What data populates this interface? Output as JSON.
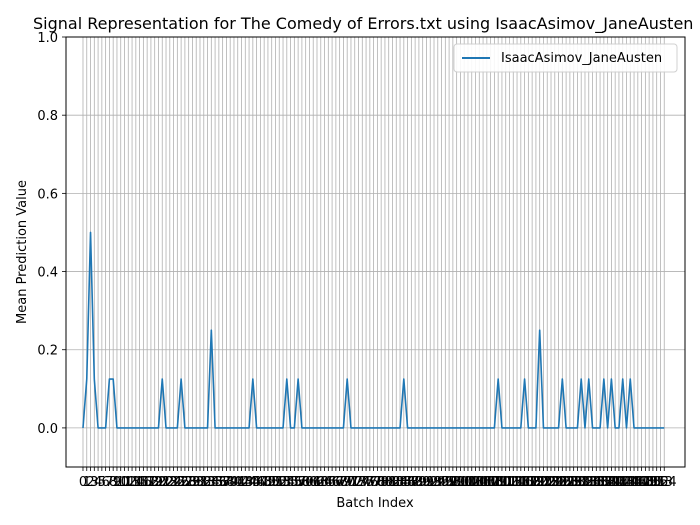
{
  "chart_data": {
    "type": "line",
    "title": "Signal Representation for The Comedy of Errors.txt using IsaacAsimov_JaneAusten",
    "xlabel": "Batch Index",
    "ylabel": "Mean Prediction Value",
    "ylim": [
      -0.1,
      1.0
    ],
    "xlim": [
      -4.5,
      159.5
    ],
    "grid": true,
    "legend_position": "upper right",
    "y_ticks": [
      "0.0",
      "0.2",
      "0.4",
      "0.6",
      "0.8",
      "1.0"
    ],
    "x_ticks_visible": [
      "0",
      "1",
      "2",
      "3",
      "4",
      "5",
      "6",
      "7",
      "8",
      "9",
      "10",
      "11",
      "12",
      "13",
      "14",
      "15",
      "16",
      "17",
      "18",
      "19",
      "20",
      "21",
      "22",
      "23",
      "24",
      "25",
      "26",
      "27",
      "28",
      "29",
      "30",
      "31",
      "32",
      "33",
      "34",
      "35",
      "36",
      "37",
      "38",
      "39",
      "40",
      "41",
      "42",
      "43",
      "44",
      "45",
      "46",
      "47",
      "48",
      "49",
      "50",
      "51",
      "52",
      "53",
      "54",
      "55",
      "56",
      "57",
      "58",
      "59",
      "60",
      "61",
      "62",
      "63",
      "64",
      "65",
      "66",
      "67",
      "68",
      "69",
      "70",
      "71",
      "72",
      "73",
      "74",
      "75",
      "76",
      "77",
      "78",
      "79",
      "80",
      "81",
      "82",
      "83",
      "84",
      "85",
      "86",
      "87",
      "88",
      "89",
      "90",
      "91",
      "92",
      "93",
      "94",
      "95",
      "96",
      "97",
      "98",
      "99",
      "100",
      "101",
      "102",
      "103",
      "104",
      "105",
      "106",
      "107",
      "108",
      "109",
      "110",
      "111",
      "112",
      "113",
      "114",
      "115",
      "116",
      "117",
      "118",
      "119",
      "120",
      "121",
      "122",
      "123",
      "124",
      "125",
      "126",
      "127",
      "128",
      "129",
      "130",
      "131",
      "132",
      "133",
      "134",
      "135",
      "136",
      "137",
      "138",
      "139",
      "140",
      "141",
      "142",
      "143",
      "144",
      "145",
      "146",
      "147",
      "148",
      "149",
      "150",
      "151",
      "152",
      "153",
      "154"
    ],
    "series": [
      {
        "name": "IsaacAsimov_JaneAusten",
        "color": "#1f77b4",
        "points": [
          [
            0,
            0.0
          ],
          [
            1,
            0.125
          ],
          [
            2,
            0.5
          ],
          [
            3,
            0.125
          ],
          [
            4,
            0.0
          ],
          [
            5,
            0.0
          ],
          [
            6,
            0.0
          ],
          [
            7,
            0.125
          ],
          [
            8,
            0.125
          ],
          [
            9,
            0.0
          ],
          [
            20,
            0.0
          ],
          [
            21,
            0.125
          ],
          [
            22,
            0.0
          ],
          [
            25,
            0.0
          ],
          [
            26,
            0.125
          ],
          [
            27,
            0.0
          ],
          [
            33,
            0.0
          ],
          [
            34,
            0.25
          ],
          [
            35,
            0.0
          ],
          [
            44,
            0.0
          ],
          [
            45,
            0.125
          ],
          [
            46,
            0.0
          ],
          [
            53,
            0.0
          ],
          [
            54,
            0.125
          ],
          [
            55,
            0.0
          ],
          [
            56,
            0.0
          ],
          [
            57,
            0.125
          ],
          [
            58,
            0.0
          ],
          [
            69,
            0.0
          ],
          [
            70,
            0.125
          ],
          [
            71,
            0.0
          ],
          [
            84,
            0.0
          ],
          [
            85,
            0.125
          ],
          [
            86,
            0.0
          ],
          [
            109,
            0.0
          ],
          [
            110,
            0.125
          ],
          [
            111,
            0.0
          ],
          [
            116,
            0.0
          ],
          [
            117,
            0.125
          ],
          [
            118,
            0.0
          ],
          [
            120,
            0.0
          ],
          [
            121,
            0.25
          ],
          [
            122,
            0.0
          ],
          [
            126,
            0.0
          ],
          [
            127,
            0.125
          ],
          [
            128,
            0.0
          ],
          [
            131,
            0.0
          ],
          [
            132,
            0.125
          ],
          [
            133,
            0.0
          ],
          [
            134,
            0.125
          ],
          [
            135,
            0.0
          ],
          [
            137,
            0.0
          ],
          [
            138,
            0.125
          ],
          [
            139,
            0.0
          ],
          [
            140,
            0.125
          ],
          [
            141,
            0.0
          ],
          [
            142,
            0.0
          ],
          [
            143,
            0.125
          ],
          [
            144,
            0.0
          ],
          [
            145,
            0.125
          ],
          [
            146,
            0.0
          ],
          [
            154,
            0.0
          ]
        ]
      }
    ]
  }
}
